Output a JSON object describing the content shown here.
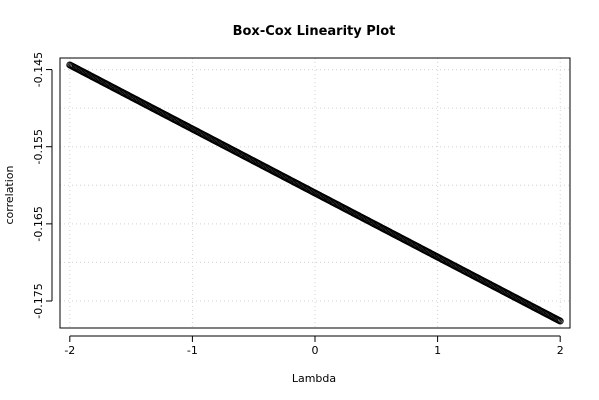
{
  "chart_data": {
    "type": "scatter",
    "title": "Box-Cox Linearity Plot",
    "xlabel": "Lambda",
    "ylabel": "correlation",
    "xlim": [
      -2.08,
      2.08
    ],
    "ylim": [
      -0.1785,
      -0.1435
    ],
    "x_ticks": [
      "-2",
      "-1",
      "0",
      "1",
      "2"
    ],
    "y_ticks": [
      "-0.145",
      "-0.155",
      "-0.165",
      "-0.175"
    ],
    "x_tick_values": [
      -2,
      -1,
      0,
      1,
      2
    ],
    "y_tick_values": [
      -0.145,
      -0.155,
      -0.165,
      -0.175
    ],
    "grid_x": [
      -2,
      -1,
      0,
      1,
      2
    ],
    "grid_y": [
      -0.145,
      -0.15,
      -0.155,
      -0.16,
      -0.165,
      -0.17,
      -0.175
    ],
    "grid": true,
    "series": [
      {
        "lambda_start": -2,
        "lambda_end": 2,
        "lambda_step": 0.01,
        "correlation_start": -0.1444,
        "correlation_end": -0.1776,
        "marker": "open-circle",
        "color": "#000000"
      }
    ]
  }
}
